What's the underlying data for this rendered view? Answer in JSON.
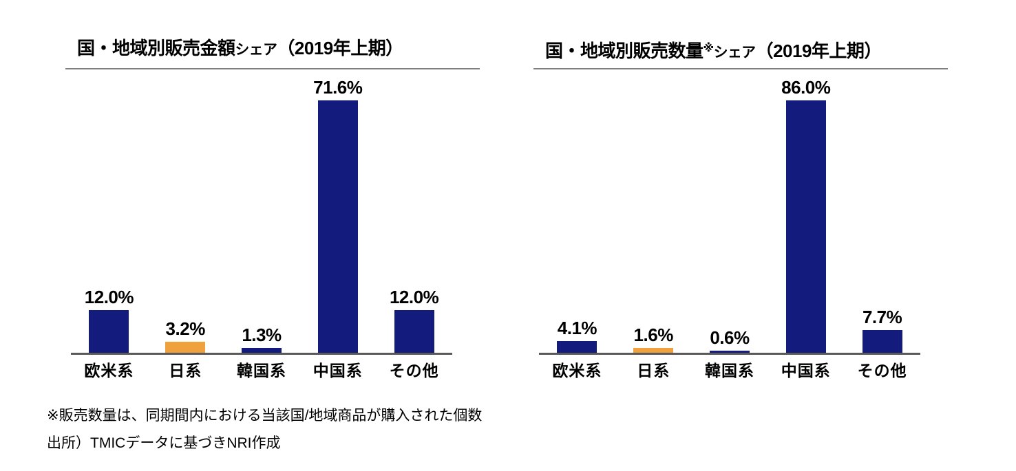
{
  "page": {
    "background": "#ffffff"
  },
  "colors": {
    "navy": "#131B7C",
    "orange": "#EFA13D",
    "axis_line": "#595959",
    "title_rule": "#7F7F7F",
    "text": "#000000"
  },
  "chart_data": [
    {
      "type": "bar",
      "title": "国・地域別販売金額シェア（2019年上期）",
      "title_parts": [
        {
          "text": "国・地域別販売金額",
          "style": "base"
        },
        {
          "text": "シェア",
          "style": "small"
        },
        {
          "text": "（2019年上期）",
          "style": "base"
        }
      ],
      "categories": [
        "欧米系",
        "日系",
        "韓国系",
        "中国系",
        "その他"
      ],
      "values": [
        12.0,
        3.2,
        1.3,
        71.6,
        12.0
      ],
      "value_labels": [
        "12.0%",
        "3.2%",
        "1.3%",
        "71.6%",
        "12.0%"
      ],
      "bar_colors": [
        "navy",
        "orange",
        "navy",
        "navy",
        "navy"
      ],
      "unit": "%",
      "yaxis_visible": false,
      "grid": false,
      "legend": "none"
    },
    {
      "type": "bar",
      "title": "国・地域別販売数量※シェア（2019年上期）",
      "title_parts": [
        {
          "text": "国・地域別販売数量",
          "style": "base"
        },
        {
          "text": "※",
          "style": "ref"
        },
        {
          "text": "シェア",
          "style": "small"
        },
        {
          "text": "（2019年上期）",
          "style": "base"
        }
      ],
      "categories": [
        "欧米系",
        "日系",
        "韓国系",
        "中国系",
        "その他"
      ],
      "values": [
        4.1,
        1.6,
        0.6,
        86.0,
        7.7
      ],
      "value_labels": [
        "4.1%",
        "1.6%",
        "0.6%",
        "86.0%",
        "7.7%"
      ],
      "bar_colors": [
        "navy",
        "orange",
        "navy",
        "navy",
        "navy"
      ],
      "unit": "%",
      "yaxis_visible": false,
      "grid": false,
      "legend": "none"
    }
  ],
  "footnotes": [
    "※販売数量は、同期間内における当該国/地域商品が購入された個数",
    "出所）TMICデータに基づきNRI作成"
  ]
}
